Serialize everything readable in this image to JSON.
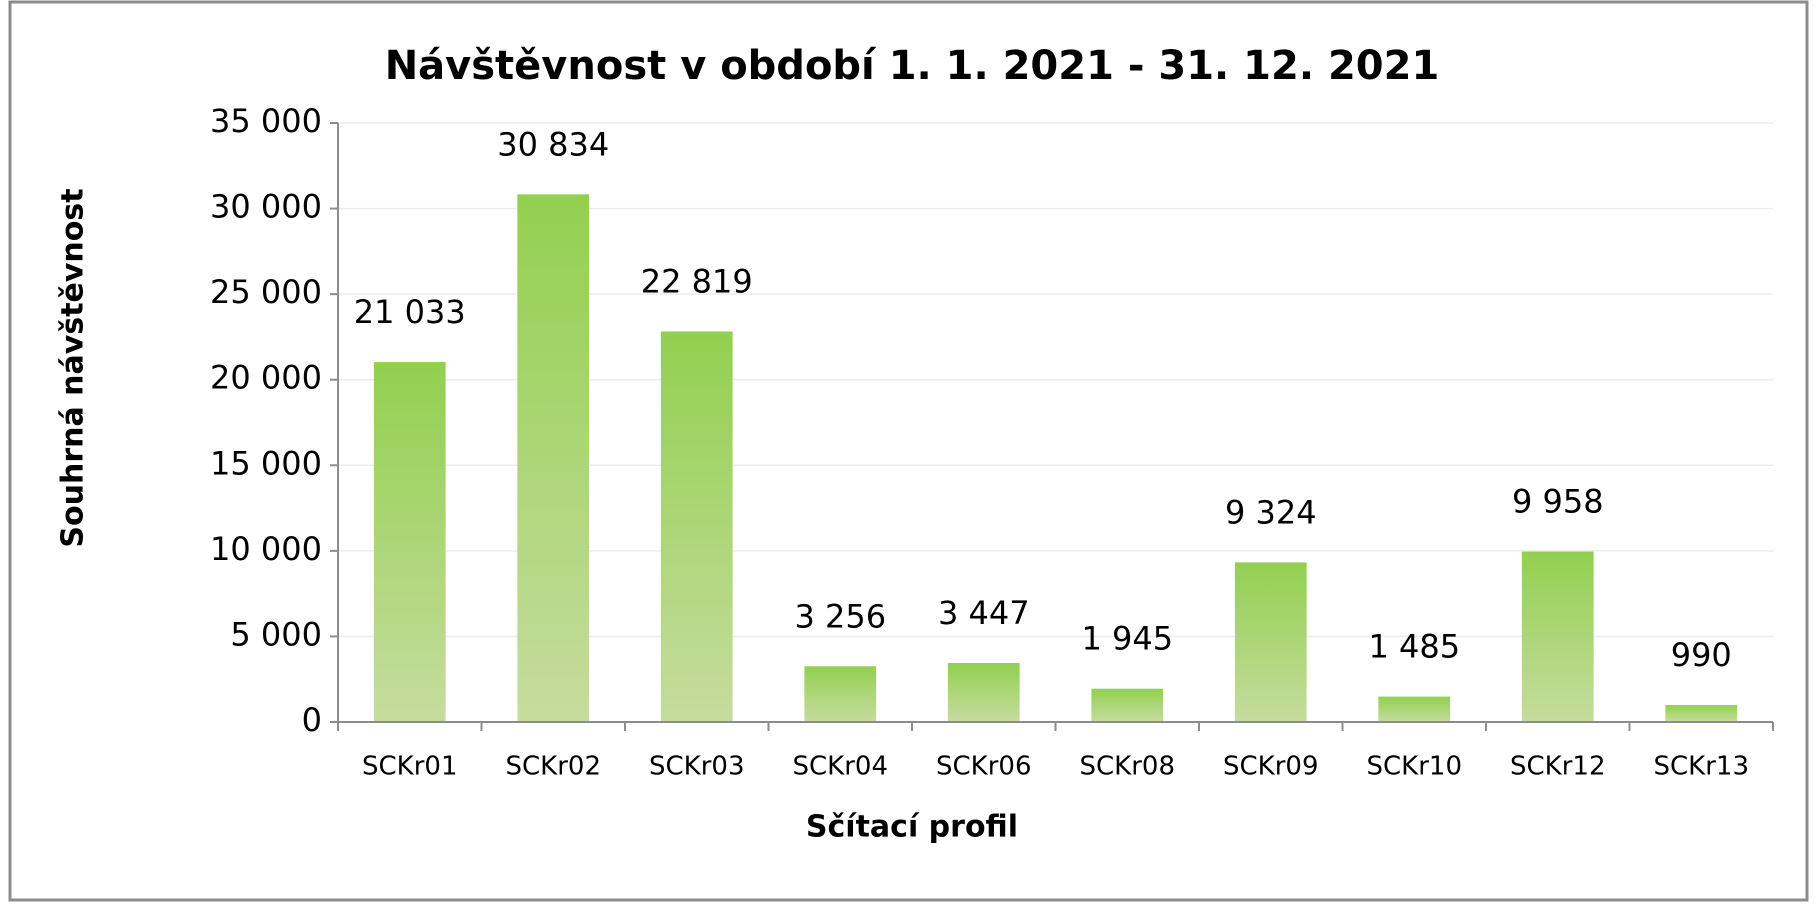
{
  "chart_data": {
    "type": "bar",
    "title": "Návštěvnost v období  1. 1. 2021 - 31. 12. 2021",
    "x_label": "Sčítací profil",
    "y_label": "Souhrná návštěvnost",
    "categories": [
      "SCKr01",
      "SCKr02",
      "SCKr03",
      "SCKr04",
      "SCKr06",
      "SCKr08",
      "SCKr09",
      "SCKr10",
      "SCKr12",
      "SCKr13"
    ],
    "values": [
      21033,
      30834,
      22819,
      3256,
      3447,
      1945,
      9324,
      1485,
      9958,
      990
    ],
    "value_labels": [
      "21 033",
      "30 834",
      "22 819",
      "3 256",
      "3 447",
      "1 945",
      "9 324",
      "1 485",
      "9 958",
      "990"
    ],
    "color": "#92d050",
    "ylim": [
      0,
      35000
    ],
    "yticks": [
      0,
      {
        "value": 5000,
        "label": "5 000"
      },
      {
        "value": 10000,
        "label": "10 000"
      },
      {
        "value": 15000,
        "label": "15 000"
      },
      {
        "value": 20000,
        "label": "20 000"
      },
      {
        "value": 25000,
        "label": "25 000"
      },
      {
        "value": 30000,
        "label": "30 000"
      },
      {
        "value": 35000,
        "label": "35 000"
      }
    ],
    "grid": true
  }
}
